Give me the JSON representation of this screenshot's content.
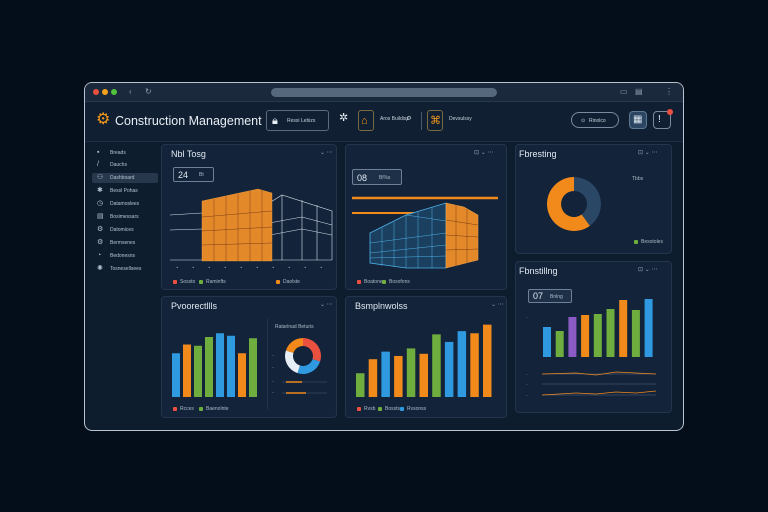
{
  "app": {
    "title": "Construction Management",
    "header_box1": "Ressi Lebizs",
    "header_box2": "Aros Buildiss",
    "header_box3": "Devsulssy",
    "pill_label": "Rinolco"
  },
  "sidebar": {
    "items": [
      {
        "label": "Breads",
        "icon": "grid-icon"
      },
      {
        "label": "Dauchs",
        "icon": "pencil-icon"
      },
      {
        "label": "Dashboard",
        "icon": "users-icon"
      },
      {
        "label": "Bessl Pohas",
        "icon": "gear-icon"
      },
      {
        "label": "Datamoslees",
        "icon": "clock-icon"
      },
      {
        "label": "Bosimessars",
        "icon": "document-icon"
      },
      {
        "label": "Datomices",
        "icon": "gear-icon"
      },
      {
        "label": "Bermsenes",
        "icon": "gear-icon"
      },
      {
        "label": "Bedonesns",
        "icon": "chart-icon"
      },
      {
        "label": "Tosnesellsees",
        "icon": "settings-icon"
      }
    ]
  },
  "panels": {
    "model1": {
      "title": "Nbl Tosg",
      "badge_num": "24",
      "badge_label": "Bt",
      "legend": [
        "Sossto",
        "Raminfts",
        "Daolste"
      ]
    },
    "model2": {
      "title": "",
      "badge_num": "08",
      "badge_label": "Bl%s",
      "legend": [
        "Boatone",
        "Bosofons"
      ]
    },
    "forecast": {
      "title": "Fbresting",
      "donut_label": "Tbbs",
      "legend": [
        "Besotoles"
      ],
      "donut_values": [
        40,
        60
      ]
    },
    "progress": {
      "title": "Pvoorectllls",
      "mini_title": "Ratarinad Beturis",
      "legend": [
        "Rcces",
        "Baenolnte"
      ],
      "donut_values": [
        30,
        25,
        25,
        20
      ]
    },
    "schedule": {
      "title": "Bsmplnwolss",
      "legend": [
        "Rvsb",
        "Bossts",
        "Rvsonss"
      ]
    },
    "reporting": {
      "title": "Fbnstillng",
      "badge_num": "07",
      "badge_label": "Bnlng"
    }
  },
  "chart_data": [
    {
      "type": "bar",
      "title": "Pvoorectllls",
      "values": [
        35,
        42,
        41,
        48,
        51,
        49,
        35,
        47
      ],
      "colors": [
        "#2f9ae0",
        "#f18a1b",
        "#6fae3e",
        "#6fae3e",
        "#2f9ae0",
        "#2f9ae0",
        "#f18a1b",
        "#6fae3e"
      ]
    },
    {
      "type": "bar",
      "title": "Bsmplnwolss",
      "values": [
        22,
        35,
        42,
        38,
        45,
        40,
        58,
        51,
        61,
        59,
        67
      ],
      "colors": [
        "#6fae3e",
        "#f18a1b",
        "#2f9ae0",
        "#f18a1b",
        "#6fae3e",
        "#f18a1b",
        "#6fae3e",
        "#2f9ae0",
        "#2f9ae0",
        "#f18a1b",
        "#f18a1b"
      ]
    },
    {
      "type": "bar",
      "title": "Fbnstillng",
      "values": [
        30,
        26,
        40,
        42,
        43,
        48,
        57,
        47,
        58
      ],
      "colors": [
        "#2f9ae0",
        "#6fae3e",
        "#8a5bc4",
        "#f18a1b",
        "#6fae3e",
        "#6fae3e",
        "#f18a1b",
        "#6fae3e",
        "#2f9ae0"
      ]
    }
  ]
}
